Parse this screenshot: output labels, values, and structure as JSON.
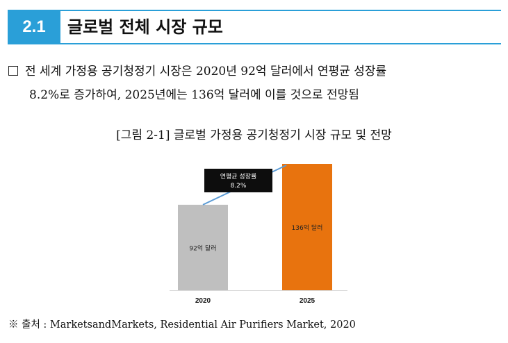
{
  "section": {
    "number": "2.1",
    "title": "글로벌 전체 시장 규모"
  },
  "body": {
    "bullet_line1": "전 세계 가정용 공기청정기 시장은 2020년 92억 달러에서 연평균 성장률",
    "bullet_line2": "8.2%로 증가하여, 2025년에는 136억 달러에 이를 것으로 전망됨"
  },
  "figure": {
    "caption": "[그림 2-1] 글로벌 가정용 공기청정기 시장 규모 및 전망"
  },
  "chart_data": {
    "type": "bar",
    "categories": [
      "2020",
      "2025"
    ],
    "values": [
      92,
      136
    ],
    "value_labels": [
      "92억 달러",
      "136억 달러"
    ],
    "bar_colors": [
      "#bfbfbf",
      "#e8730e"
    ],
    "annotation": {
      "line1": "연평균 성장률",
      "line2": "8.2%"
    },
    "grid": false,
    "title": "",
    "xlabel": "",
    "ylabel": ""
  },
  "source": {
    "text": "※ 출처 : MarketsandMarkets, Residential Air Purifiers Market, 2020"
  }
}
